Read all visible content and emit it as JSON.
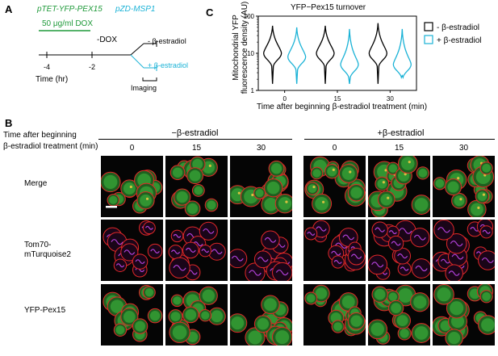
{
  "panels": {
    "A": {
      "letter": "A",
      "construct1": "pTET-YFP-PEX15",
      "construct2": "pZD-MSP1",
      "dox": "50 μg/ml DOX",
      "minus_dox": "-DOX",
      "minus_estradiol": "- β-estradiol",
      "plus_estradiol": "+ β-estradiol",
      "imaging": "Imaging",
      "ticks": [
        "-4",
        "-2"
      ],
      "xlabel": "Time (hr)",
      "colors": {
        "dox_bar": "#1f9a3a",
        "estradiol": "#1ab2d6"
      }
    },
    "B": {
      "letter": "B",
      "time_header_line1": "Time after beginning",
      "time_header_line2": "β-estradiol treatment (min)",
      "group_minus": "−β-estradiol",
      "group_plus": "+β-estradiol",
      "times": [
        "0",
        "15",
        "30",
        "0",
        "15",
        "30"
      ],
      "rows": [
        {
          "label1": "Merge",
          "label2": ""
        },
        {
          "label1": "Tom70-",
          "label2": "mTurquoise2"
        },
        {
          "label1": "YFP-Pex15",
          "label2": ""
        }
      ]
    },
    "C": {
      "letter": "C"
    }
  },
  "chart_data": {
    "type": "violin",
    "title": "YFP−Pex15 turnover",
    "ylabel_line1": "Mitochondrial YFP",
    "ylabel_line2": "fluorescence density (AU)",
    "xlabel": "Time after beginning β-estradiol treatment (min)",
    "yscale": "log",
    "ylim": [
      1,
      100
    ],
    "yticks": [
      "1",
      "10",
      "100"
    ],
    "categories": [
      "0",
      "15",
      "30"
    ],
    "legend_position": "right",
    "series": [
      {
        "name": "- β-estradiol",
        "color": "#000000",
        "violins": [
          {
            "min": 1.5,
            "max": 55,
            "mode": 10
          },
          {
            "min": 1.5,
            "max": 55,
            "mode": 10
          },
          {
            "min": 1.5,
            "max": 65,
            "mode": 10
          }
        ]
      },
      {
        "name": "+ β-estradiol",
        "color": "#1ab2d6",
        "violins": [
          {
            "min": 1.5,
            "max": 50,
            "mode": 8
          },
          {
            "min": 1.5,
            "max": 45,
            "mode": 5
          },
          {
            "min": 2.5,
            "max": 45,
            "mode": 5
          }
        ]
      }
    ]
  }
}
